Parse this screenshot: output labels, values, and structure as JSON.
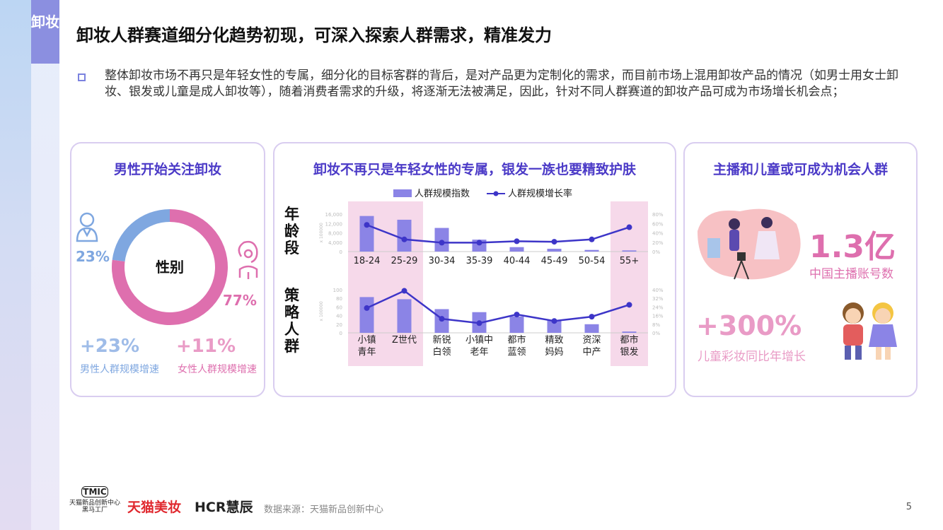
{
  "tag": "卸妆",
  "title": "卸妆人群赛道细分化趋势初现，可深入探索人群需求，精准发力",
  "paragraph": "整体卸妆市场不再只是年轻女性的专属，细分化的目标客群的背后，是对产品更为定制化的需求，而目前市场上混用卸妆产品的情况（如男士用女士卸妆、银发或儿童是成人卸妆等），随着消费者需求的升级，将逐渐无法被满足，因此，针对不同人群赛道的卸妆产品可成为市场增长机会点；",
  "card1": {
    "title": "男性开始关注卸妆",
    "donut_center": "性别",
    "male_pct": "23%",
    "female_pct": "77%",
    "male_growth": "+23%",
    "female_growth": "+11%",
    "male_growth_label": "男性人群规模增速",
    "female_growth_label": "女性人群规模增速",
    "male_color": "#7fa7e0",
    "female_color": "#de6fae"
  },
  "card2": {
    "title": "卸妆不再只是年轻女性的专属，银发一族也要精致护肤",
    "legend_bar": "人群规模指数",
    "legend_line": "人群规模增长率",
    "row1_label": "年龄段",
    "row2_label": "策略人群",
    "axis_unit": "x 100000"
  },
  "card3": {
    "title": "主播和儿童或可成为机会人群",
    "stat1": "1.3亿",
    "stat1_label": "中国主播账号数",
    "stat2": "+300%",
    "stat2_label": "儿童彩妆同比年增长"
  },
  "chart_data": [
    {
      "type": "bar",
      "title": "",
      "categories": [
        "18-24",
        "25-29",
        "30-34",
        "35-39",
        "40-44",
        "45-49",
        "50-54",
        "55+"
      ],
      "series": [
        {
          "name": "人群规模指数",
          "type": "bar",
          "axis": "left",
          "values": [
            15200,
            13600,
            10100,
            5100,
            1900,
            1200,
            700,
            500
          ]
        },
        {
          "name": "人群规模增长率",
          "type": "line",
          "axis": "right",
          "values": [
            0.57,
            0.26,
            0.19,
            0.19,
            0.22,
            0.21,
            0.26,
            0.52
          ]
        }
      ],
      "ylim_left": [
        0,
        16000
      ],
      "yticks_left": [
        "0",
        "4,000",
        "8,000",
        "12,000",
        "16,000"
      ],
      "ylim_right": [
        0,
        0.8
      ],
      "yticks_right": [
        "0%",
        "20%",
        "40%",
        "60%",
        "80%"
      ],
      "highlight": [
        "18-24",
        "25-29",
        "55+"
      ],
      "bar_color": "#8b84e6",
      "line_color": "#3d35c8",
      "highlight_color": "#f6d9ea"
    },
    {
      "type": "bar",
      "title": "",
      "categories": [
        "小镇\n青年",
        "Z世代",
        "新锐\n白领",
        "小镇中\n老年",
        "都市\n蓝领",
        "精致\n妈妈",
        "资深\n中产",
        "都市\n银发"
      ],
      "series": [
        {
          "name": "人群规模指数",
          "type": "bar",
          "axis": "left",
          "values": [
            83,
            78,
            55,
            48,
            38,
            29,
            20,
            3
          ]
        },
        {
          "name": "人群规模增长率",
          "type": "line",
          "axis": "right",
          "values": [
            0.23,
            0.39,
            0.13,
            0.09,
            0.17,
            0.11,
            0.15,
            0.26
          ]
        }
      ],
      "ylim_left": [
        0,
        100
      ],
      "yticks_left": [
        "0",
        "20",
        "40",
        "60",
        "80",
        "100"
      ],
      "ylim_right": [
        0,
        0.4
      ],
      "yticks_right": [
        "0%",
        "8%",
        "16%",
        "24%",
        "32%",
        "40%"
      ],
      "highlight": [
        "小镇\n青年",
        "Z世代",
        "都市\n银发"
      ],
      "bar_color": "#8b84e6",
      "line_color": "#3d35c8",
      "highlight_color": "#f6d9ea"
    },
    {
      "type": "pie",
      "title": "",
      "categories": [
        "男性",
        "女性"
      ],
      "values": [
        23,
        77
      ],
      "colors": [
        "#7fa7e0",
        "#de6fae"
      ]
    }
  ],
  "footer": {
    "tmic_logo_text": "TMIC",
    "tmic_sub1": "天猫新品创新中心",
    "tmic_sub2": "黑马工厂",
    "tmall_logo": "天猫美妆",
    "hcr_logo": "HCR慧辰",
    "source": "数据来源：天猫新品创新中心",
    "page": "5"
  }
}
